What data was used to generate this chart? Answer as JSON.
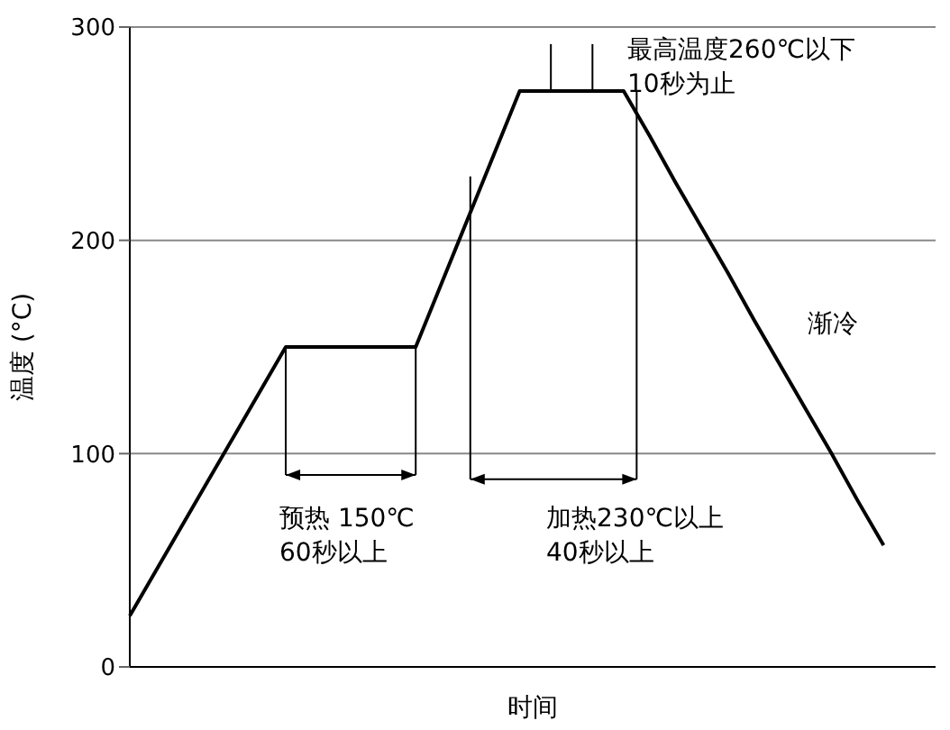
{
  "chart_data": {
    "type": "line",
    "xlabel": "时间",
    "ylabel": "温度 (°C)",
    "categories": [
      null,
      null,
      null,
      null,
      null,
      null,
      null,
      null,
      null,
      null,
      null,
      null,
      null,
      null,
      null,
      null,
      null,
      null,
      null,
      null,
      null,
      null,
      null,
      null,
      null,
      null,
      null,
      null,
      null,
      null,
      null,
      null
    ],
    "series": [
      {
        "color": "#000000",
        "values": [
          24,
          45,
          66,
          87,
          108,
          129,
          150,
          150,
          150,
          150,
          150,
          150,
          180,
          210,
          240,
          270,
          270,
          270,
          270,
          270,
          249,
          227,
          206,
          185,
          163,
          142,
          121,
          100,
          78,
          57,
          null,
          null
        ]
      }
    ],
    "ylim": [
      0,
      300
    ],
    "yticks": [
      0,
      100,
      200,
      300
    ],
    "grid": "y",
    "marker": "none",
    "line_style": "solid",
    "legend": false,
    "annotations": [
      "预热  150℃\n60秒以上",
      "加热230℃以上\n40秒以上",
      "最高温度260℃以下\n10秒为止",
      "渐冷"
    ]
  }
}
